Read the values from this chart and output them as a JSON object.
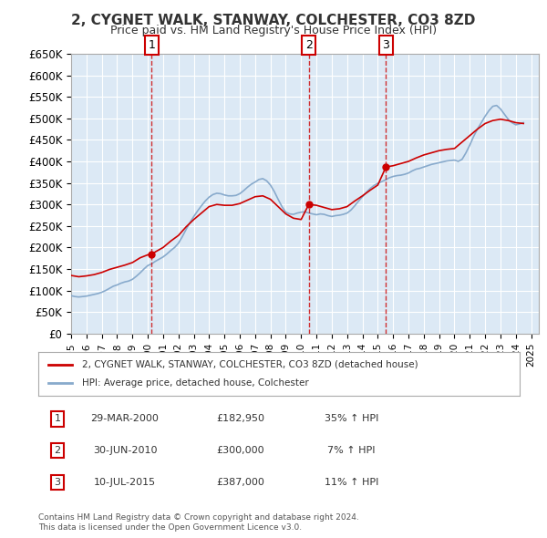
{
  "title": "2, CYGNET WALK, STANWAY, COLCHESTER, CO3 8ZD",
  "subtitle": "Price paid vs. HM Land Registry's House Price Index (HPI)",
  "ylabel": "",
  "xlabel": "",
  "ylim": [
    0,
    650000
  ],
  "yticks": [
    0,
    50000,
    100000,
    150000,
    200000,
    250000,
    300000,
    350000,
    400000,
    450000,
    500000,
    550000,
    600000,
    650000
  ],
  "ytick_labels": [
    "£0",
    "£50K",
    "£100K",
    "£150K",
    "£200K",
    "£250K",
    "£300K",
    "£350K",
    "£400K",
    "£450K",
    "£500K",
    "£550K",
    "£600K",
    "£650K"
  ],
  "xlim_start": 1995.0,
  "xlim_end": 2025.5,
  "background_color": "#dce9f5",
  "plot_bg_color": "#dce9f5",
  "grid_color": "#ffffff",
  "sale_color": "#cc0000",
  "hpi_color": "#6699cc",
  "sale_line_color": "#cc0000",
  "hpi_line_color": "#88aacc",
  "sales": [
    {
      "date_year": 2000.25,
      "price": 182950,
      "label": "1"
    },
    {
      "date_year": 2010.5,
      "price": 300000,
      "label": "2"
    },
    {
      "date_year": 2015.53,
      "price": 387000,
      "label": "3"
    }
  ],
  "vline_dates": [
    2000.25,
    2010.5,
    2015.53
  ],
  "legend_entries": [
    "2, CYGNET WALK, STANWAY, COLCHESTER, CO3 8ZD (detached house)",
    "HPI: Average price, detached house, Colchester"
  ],
  "table_rows": [
    {
      "num": "1",
      "date": "29-MAR-2000",
      "price": "£182,950",
      "hpi": "35% ↑ HPI"
    },
    {
      "num": "2",
      "date": "30-JUN-2010",
      "price": "£300,000",
      "hpi": "7% ↑ HPI"
    },
    {
      "num": "3",
      "date": "10-JUL-2015",
      "price": "£387,000",
      "hpi": "11% ↑ HPI"
    }
  ],
  "footer": "Contains HM Land Registry data © Crown copyright and database right 2024.\nThis data is licensed under the Open Government Licence v3.0.",
  "hpi_data": {
    "years": [
      1995.0,
      1995.25,
      1995.5,
      1995.75,
      1996.0,
      1996.25,
      1996.5,
      1996.75,
      1997.0,
      1997.25,
      1997.5,
      1997.75,
      1998.0,
      1998.25,
      1998.5,
      1998.75,
      1999.0,
      1999.25,
      1999.5,
      1999.75,
      2000.0,
      2000.25,
      2000.5,
      2000.75,
      2001.0,
      2001.25,
      2001.5,
      2001.75,
      2002.0,
      2002.25,
      2002.5,
      2002.75,
      2003.0,
      2003.25,
      2003.5,
      2003.75,
      2004.0,
      2004.25,
      2004.5,
      2004.75,
      2005.0,
      2005.25,
      2005.5,
      2005.75,
      2006.0,
      2006.25,
      2006.5,
      2006.75,
      2007.0,
      2007.25,
      2007.5,
      2007.75,
      2008.0,
      2008.25,
      2008.5,
      2008.75,
      2009.0,
      2009.25,
      2009.5,
      2009.75,
      2010.0,
      2010.25,
      2010.5,
      2010.75,
      2011.0,
      2011.25,
      2011.5,
      2011.75,
      2012.0,
      2012.25,
      2012.5,
      2012.75,
      2013.0,
      2013.25,
      2013.5,
      2013.75,
      2014.0,
      2014.25,
      2014.5,
      2014.75,
      2015.0,
      2015.25,
      2015.5,
      2015.75,
      2016.0,
      2016.25,
      2016.5,
      2016.75,
      2017.0,
      2017.25,
      2017.5,
      2017.75,
      2018.0,
      2018.25,
      2018.5,
      2018.75,
      2019.0,
      2019.25,
      2019.5,
      2019.75,
      2020.0,
      2020.25,
      2020.5,
      2020.75,
      2021.0,
      2021.25,
      2021.5,
      2021.75,
      2022.0,
      2022.25,
      2022.5,
      2022.75,
      2023.0,
      2023.25,
      2023.5,
      2023.75,
      2024.0,
      2024.25,
      2024.5
    ],
    "values": [
      88000,
      86000,
      85000,
      86000,
      87000,
      89000,
      91000,
      93000,
      96000,
      100000,
      105000,
      110000,
      113000,
      117000,
      120000,
      122000,
      126000,
      133000,
      141000,
      150000,
      158000,
      162000,
      168000,
      173000,
      178000,
      185000,
      193000,
      200000,
      210000,
      225000,
      242000,
      258000,
      272000,
      285000,
      297000,
      308000,
      317000,
      323000,
      326000,
      325000,
      322000,
      320000,
      320000,
      321000,
      325000,
      332000,
      340000,
      347000,
      352000,
      358000,
      360000,
      355000,
      345000,
      330000,
      312000,
      295000,
      282000,
      278000,
      277000,
      280000,
      282000,
      283000,
      280000,
      278000,
      276000,
      278000,
      277000,
      274000,
      272000,
      274000,
      275000,
      277000,
      280000,
      287000,
      297000,
      308000,
      318000,
      328000,
      337000,
      344000,
      349000,
      353000,
      357000,
      362000,
      365000,
      367000,
      368000,
      370000,
      373000,
      378000,
      382000,
      384000,
      387000,
      390000,
      393000,
      395000,
      397000,
      399000,
      401000,
      402000,
      403000,
      400000,
      405000,
      420000,
      438000,
      458000,
      475000,
      490000,
      505000,
      518000,
      528000,
      530000,
      522000,
      510000,
      498000,
      490000,
      485000,
      487000,
      490000
    ]
  },
  "sale_data": {
    "years": [
      1995.0,
      1995.5,
      1996.0,
      1996.5,
      1997.0,
      1997.5,
      1998.0,
      1998.5,
      1999.0,
      1999.5,
      2000.0,
      2000.25,
      2000.5,
      2001.0,
      2001.5,
      2002.0,
      2002.5,
      2003.0,
      2003.5,
      2004.0,
      2004.5,
      2005.0,
      2005.5,
      2006.0,
      2006.5,
      2007.0,
      2007.5,
      2008.0,
      2008.5,
      2009.0,
      2009.5,
      2010.0,
      2010.5,
      2011.0,
      2011.5,
      2012.0,
      2012.5,
      2013.0,
      2013.5,
      2014.0,
      2014.5,
      2015.0,
      2015.53,
      2016.0,
      2016.5,
      2017.0,
      2017.5,
      2018.0,
      2018.5,
      2019.0,
      2019.5,
      2020.0,
      2020.5,
      2021.0,
      2021.5,
      2022.0,
      2022.5,
      2023.0,
      2023.5,
      2024.0,
      2024.5
    ],
    "values": [
      135000,
      132000,
      134000,
      137000,
      142000,
      149000,
      154000,
      159000,
      165000,
      176000,
      183000,
      182950,
      190000,
      200000,
      215000,
      228000,
      248000,
      265000,
      280000,
      295000,
      300000,
      298000,
      298000,
      302000,
      310000,
      318000,
      320000,
      312000,
      295000,
      278000,
      268000,
      265000,
      300000,
      298000,
      293000,
      288000,
      290000,
      295000,
      308000,
      320000,
      333000,
      345000,
      387000,
      390000,
      395000,
      400000,
      408000,
      415000,
      420000,
      425000,
      428000,
      430000,
      445000,
      460000,
      475000,
      488000,
      495000,
      498000,
      495000,
      490000,
      488000
    ]
  }
}
